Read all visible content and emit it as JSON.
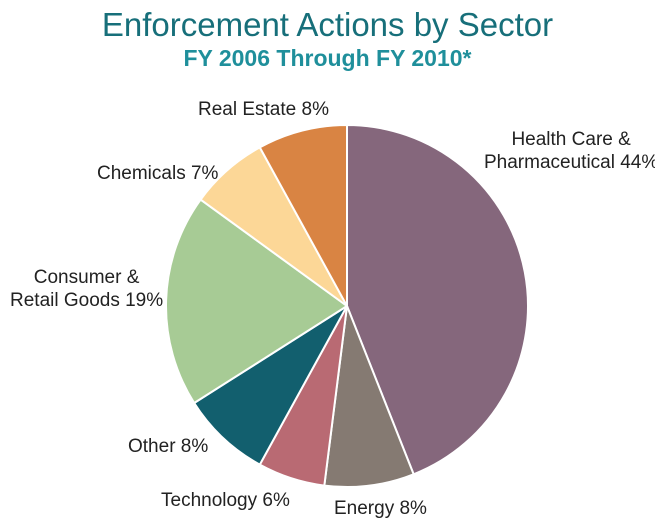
{
  "chart_data": {
    "type": "pie",
    "title": "Enforcement Actions by Sector",
    "subtitle": "FY 2006 Through FY 2010*",
    "slices": [
      {
        "label_lines": [
          "Health Care &",
          "Pharmaceutical 44%"
        ],
        "value": 44,
        "color": "#85677c"
      },
      {
        "label_lines": [
          "Energy 8%"
        ],
        "value": 8,
        "color": "#857a72"
      },
      {
        "label_lines": [
          "Technology 6%"
        ],
        "value": 6,
        "color": "#b96a73"
      },
      {
        "label_lines": [
          "Other 8%"
        ],
        "value": 8,
        "color": "#125f6e"
      },
      {
        "label_lines": [
          "Consumer &",
          "Retail Goods 19%"
        ],
        "value": 19,
        "color": "#a7cb95"
      },
      {
        "label_lines": [
          "Chemicals 7%"
        ],
        "value": 7,
        "color": "#fcd797"
      },
      {
        "label_lines": [
          "Real Estate 8%"
        ],
        "value": 8,
        "color": "#d98443"
      }
    ]
  }
}
